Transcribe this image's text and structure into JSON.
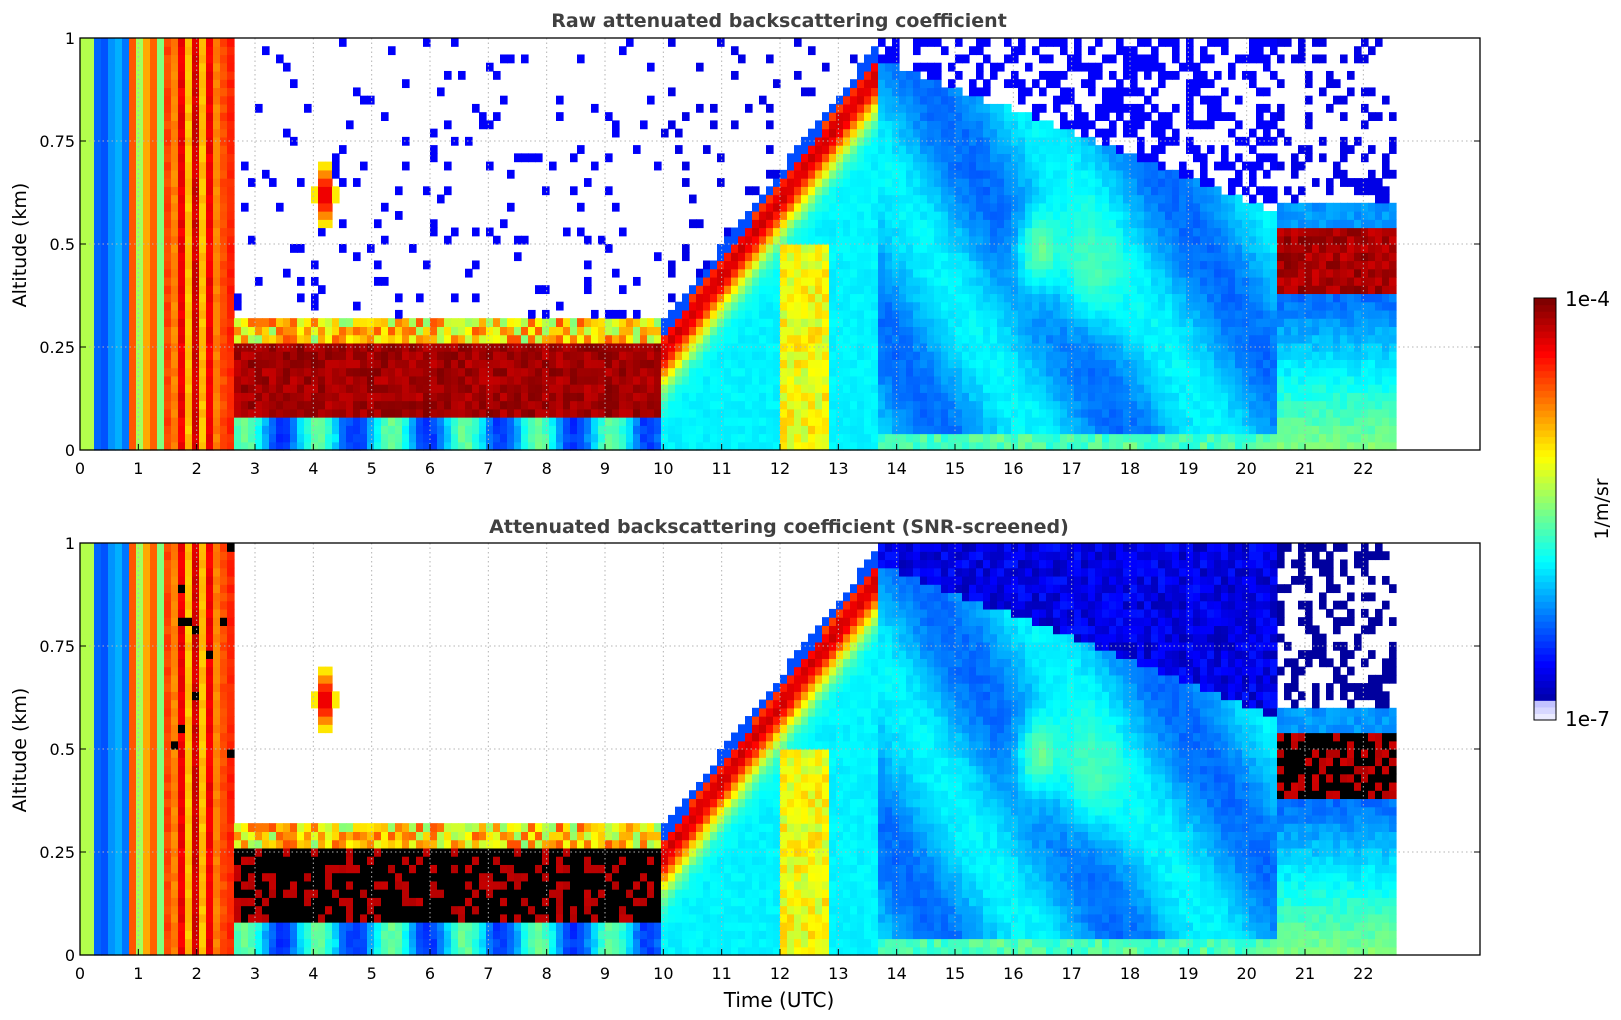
{
  "chart_data": [
    {
      "type": "heatmap",
      "title": "Raw attenuated backscattering coefficient",
      "xlabel": "",
      "ylabel": "Altitude (km)",
      "xlim": [
        0,
        24
      ],
      "ylim": [
        0,
        1
      ],
      "x_ticks": [
        "0",
        "1",
        "2",
        "3",
        "4",
        "5",
        "6",
        "7",
        "8",
        "9",
        "10",
        "11",
        "12",
        "13",
        "14",
        "15",
        "16",
        "17",
        "18",
        "19",
        "20",
        "21",
        "22"
      ],
      "y_ticks": [
        "0",
        "0.25",
        "0.5",
        "0.75",
        "1"
      ],
      "grid": true,
      "screened": false,
      "data_end_hour": 22.5,
      "features": {
        "morning_saturated_hours": [
          0,
          2.7
        ],
        "nocturnal_layer_top_km": 0.3,
        "aerosol_peak_km_at_13h": 0.95,
        "noise_above_km_after_14h": 0.6,
        "cloud_layer_km_after_20_5h": 0.45
      }
    },
    {
      "type": "heatmap",
      "title": "Attenuated backscattering coefficient (SNR-screened)",
      "xlabel": "Time (UTC)",
      "ylabel": "Altitude (km)",
      "xlim": [
        0,
        24
      ],
      "ylim": [
        0,
        1
      ],
      "x_ticks": [
        "0",
        "1",
        "2",
        "3",
        "4",
        "5",
        "6",
        "7",
        "8",
        "9",
        "10",
        "11",
        "12",
        "13",
        "14",
        "15",
        "16",
        "17",
        "18",
        "19",
        "20",
        "21",
        "22"
      ],
      "y_ticks": [
        "0",
        "0.25",
        "0.5",
        "0.75",
        "1"
      ],
      "grid": true,
      "screened": true,
      "data_end_hour": 22.5
    }
  ],
  "colorbar": {
    "label": "1/m/sr",
    "max_label": "1e-4",
    "min_label": "1e-7",
    "log_min": -7,
    "log_max": -4,
    "colormap": "jet"
  }
}
